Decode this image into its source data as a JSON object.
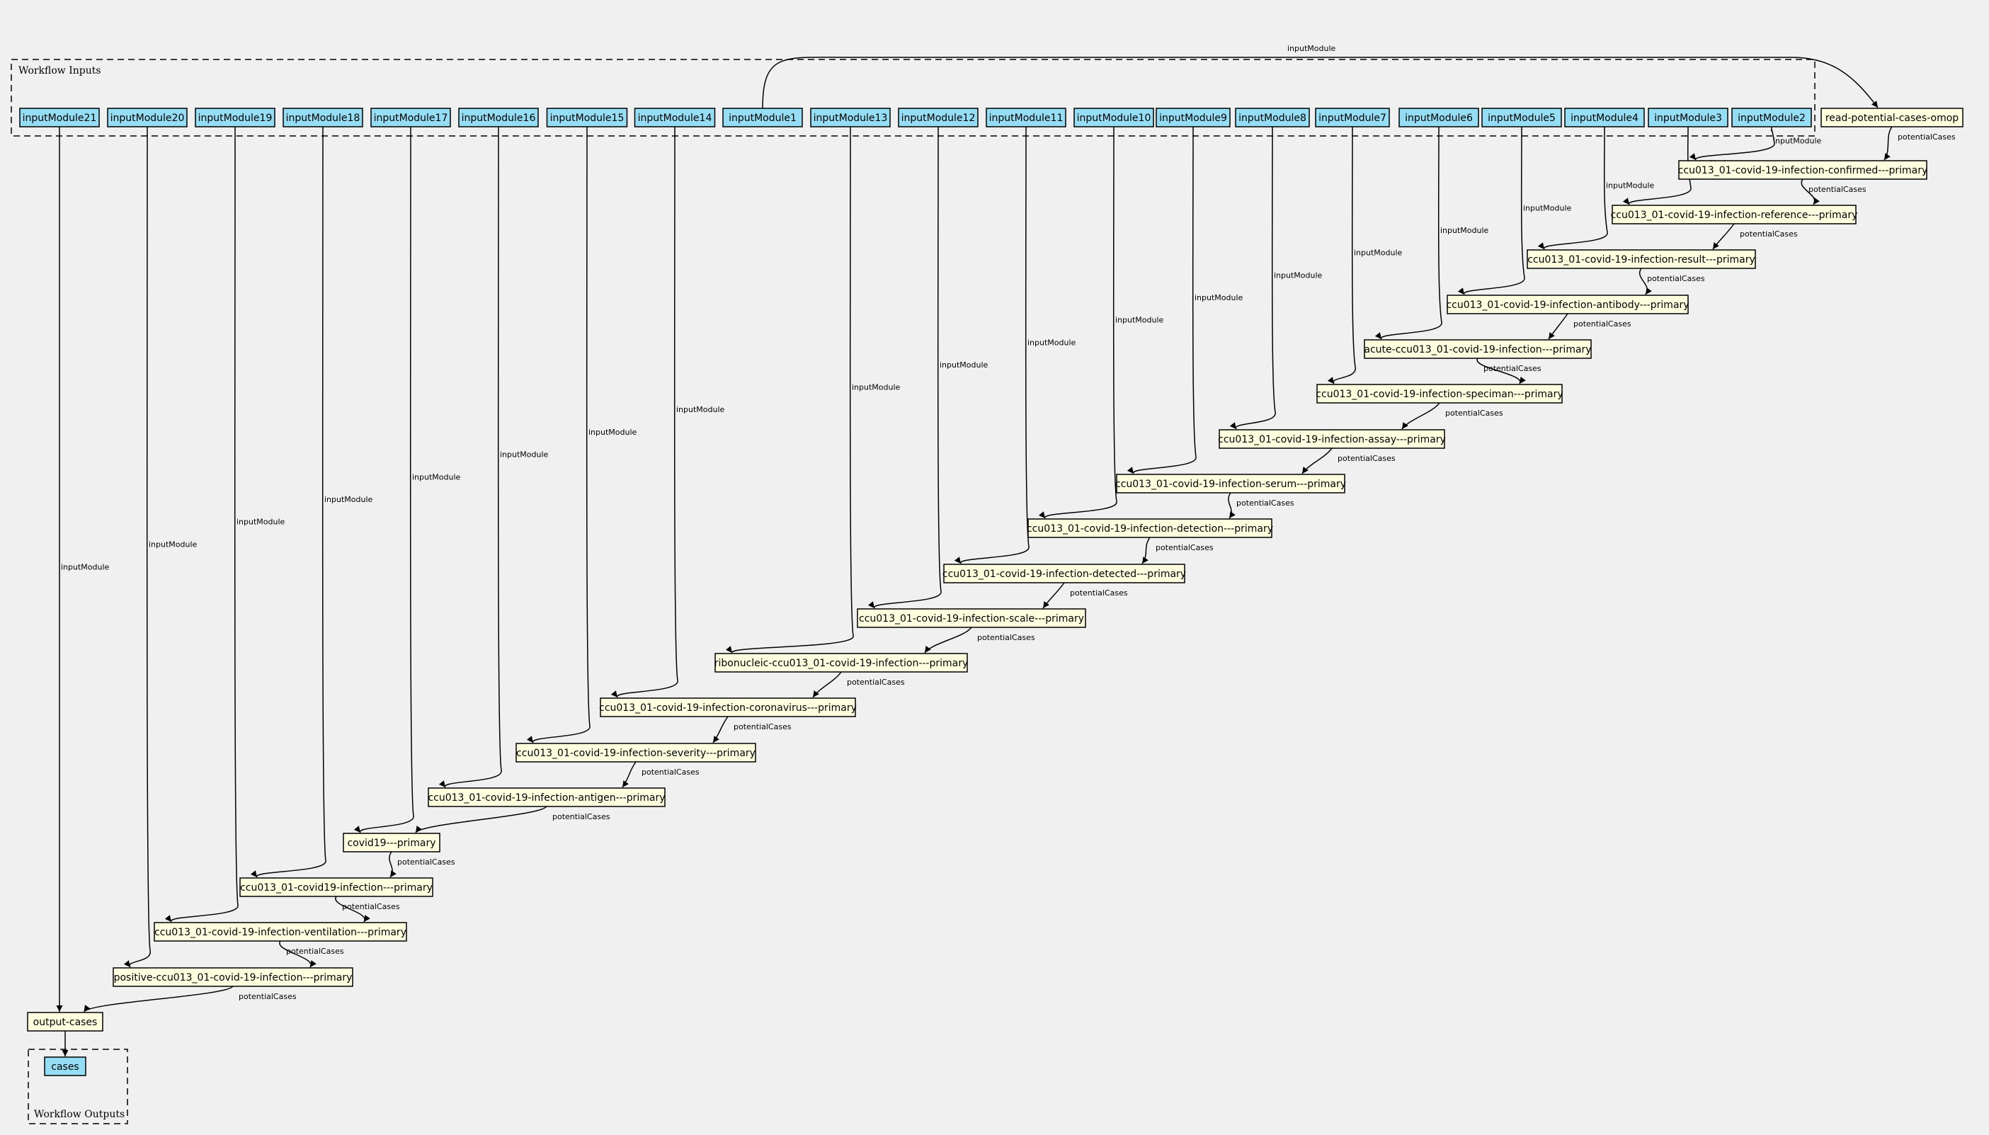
{
  "clusters": {
    "inputs_label": "Workflow Inputs",
    "outputs_label": "Workflow Outputs"
  },
  "inputs": [
    "inputModule21",
    "inputModule20",
    "inputModule19",
    "inputModule18",
    "inputModule17",
    "inputModule16",
    "inputModule15",
    "inputModule14",
    "inputModule1",
    "inputModule13",
    "inputModule12",
    "inputModule11",
    "inputModule10",
    "inputModule9",
    "inputModule8",
    "inputModule7",
    "inputModule6",
    "inputModule5",
    "inputModule4",
    "inputModule3",
    "inputModule2"
  ],
  "read_step": "read-potential-cases-omop",
  "steps": [
    {
      "label": "ccu013_01-covid-19-infection-confirmed---primary",
      "input": "inputModule2"
    },
    {
      "label": "ccu013_01-covid-19-infection-reference---primary",
      "input": "inputModule3"
    },
    {
      "label": "ccu013_01-covid-19-infection-result---primary",
      "input": "inputModule4"
    },
    {
      "label": "ccu013_01-covid-19-infection-antibody---primary",
      "input": "inputModule5"
    },
    {
      "label": "acute-ccu013_01-covid-19-infection---primary",
      "input": "inputModule6"
    },
    {
      "label": "ccu013_01-covid-19-infection-speciman---primary",
      "input": "inputModule7"
    },
    {
      "label": "ccu013_01-covid-19-infection-assay---primary",
      "input": "inputModule8"
    },
    {
      "label": "ccu013_01-covid-19-infection-serum---primary",
      "input": "inputModule9"
    },
    {
      "label": "ccu013_01-covid-19-infection-detection---primary",
      "input": "inputModule10"
    },
    {
      "label": "ccu013_01-covid-19-infection-detected---primary",
      "input": "inputModule11"
    },
    {
      "label": "ccu013_01-covid-19-infection-scale---primary",
      "input": "inputModule12"
    },
    {
      "label": "ribonucleic-ccu013_01-covid-19-infection---primary",
      "input": "inputModule13"
    },
    {
      "label": "ccu013_01-covid-19-infection-coronavirus---primary",
      "input": "inputModule14"
    },
    {
      "label": "ccu013_01-covid-19-infection-severity---primary",
      "input": "inputModule15"
    },
    {
      "label": "ccu013_01-covid-19-infection-antigen---primary",
      "input": "inputModule16"
    },
    {
      "label": "covid19---primary",
      "input": "inputModule17"
    },
    {
      "label": "ccu013_01-covid19-infection---primary",
      "input": "inputModule18"
    },
    {
      "label": "ccu013_01-covid-19-infection-ventilation---primary",
      "input": "inputModule19"
    },
    {
      "label": "positive-ccu013_01-covid-19-infection---primary",
      "input": "inputModule20"
    }
  ],
  "output_step": "output-cases",
  "output_step_input": "inputModule21",
  "outputs": [
    "cases"
  ],
  "edge_labels": {
    "input": "inputModule",
    "chain": "potentialCases"
  }
}
